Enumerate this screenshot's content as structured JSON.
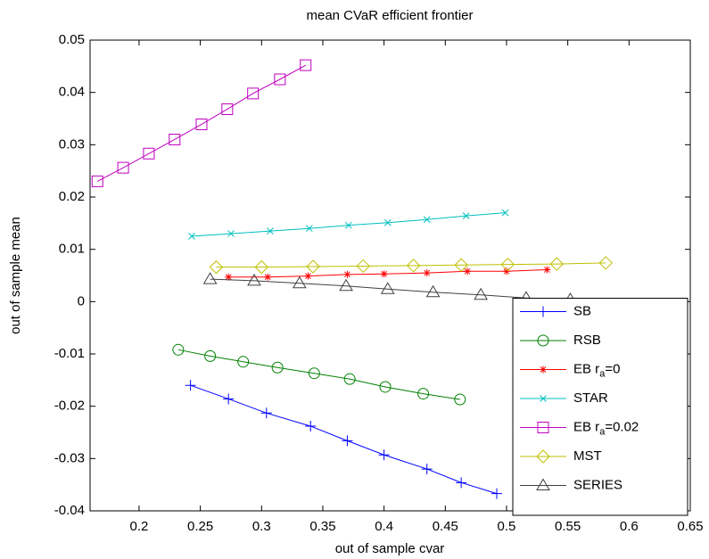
{
  "chart_data": {
    "type": "line",
    "title": "mean CVaR efficient frontier",
    "x_label": "out of sample cvar",
    "y_label": "out of sample mean",
    "xlim": [
      0.16,
      0.65
    ],
    "ylim": [
      -0.04,
      0.05
    ],
    "xticks": [
      0.2,
      0.25,
      0.3,
      0.35,
      0.4,
      0.45,
      0.5,
      0.55,
      0.6,
      0.65
    ],
    "yticks": [
      -0.04,
      -0.03,
      -0.02,
      -0.01,
      0,
      0.01,
      0.02,
      0.03,
      0.04,
      0.05
    ],
    "legend": "lower right",
    "series": [
      {
        "name": "SB",
        "color": "#0000ff",
        "marker": "plus",
        "x": [
          0.242,
          0.273,
          0.304,
          0.34,
          0.37,
          0.4,
          0.435,
          0.463,
          0.492
        ],
        "values": [
          -0.016,
          -0.0186,
          -0.0213,
          -0.0238,
          -0.0266,
          -0.0293,
          -0.032,
          -0.0346,
          -0.0367
        ]
      },
      {
        "name": "RSB",
        "color": "#008000",
        "marker": "circle",
        "x": [
          0.232,
          0.258,
          0.285,
          0.313,
          0.343,
          0.372,
          0.401,
          0.432,
          0.462
        ],
        "values": [
          -0.0092,
          -0.0104,
          -0.0115,
          -0.0126,
          -0.0137,
          -0.0148,
          -0.0163,
          -0.0176,
          -0.0187
        ]
      },
      {
        "name": "EB r_a=0",
        "color": "#ff0000",
        "marker": "star",
        "x": [
          0.273,
          0.305,
          0.338,
          0.37,
          0.4,
          0.435,
          0.468,
          0.5,
          0.533
        ],
        "values": [
          0.0047,
          0.0047,
          0.0049,
          0.0052,
          0.0053,
          0.0055,
          0.0058,
          0.0058,
          0.0061
        ]
      },
      {
        "name": "STAR",
        "color": "#00bfbf",
        "marker": "x",
        "x": [
          0.243,
          0.275,
          0.307,
          0.339,
          0.371,
          0.403,
          0.435,
          0.467,
          0.499
        ],
        "values": [
          0.0125,
          0.013,
          0.0135,
          0.014,
          0.0146,
          0.0151,
          0.0157,
          0.0164,
          0.017
        ]
      },
      {
        "name": "EB r_a=0.02",
        "color": "#bf00bf",
        "marker": "square",
        "x": [
          0.166,
          0.187,
          0.208,
          0.229,
          0.251,
          0.272,
          0.293,
          0.315,
          0.336
        ],
        "values": [
          0.023,
          0.0256,
          0.0283,
          0.031,
          0.0339,
          0.0368,
          0.0398,
          0.0425,
          0.0452
        ]
      },
      {
        "name": "MST",
        "color": "#bfbf00",
        "marker": "diamond",
        "x": [
          0.263,
          0.3,
          0.342,
          0.383,
          0.424,
          0.463,
          0.501,
          0.541,
          0.581
        ],
        "values": [
          0.0066,
          0.0066,
          0.0067,
          0.0068,
          0.0069,
          0.007,
          0.0071,
          0.0072,
          0.0074
        ]
      },
      {
        "name": "SERIES",
        "color": "#404040",
        "marker": "triangle",
        "x": [
          0.258,
          0.294,
          0.331,
          0.369,
          0.403,
          0.44,
          0.479,
          0.516,
          0.552
        ],
        "values": [
          0.0043,
          0.004,
          0.0035,
          0.003,
          0.0024,
          0.0018,
          0.0013,
          0.0007,
          0.0004
        ]
      }
    ]
  }
}
